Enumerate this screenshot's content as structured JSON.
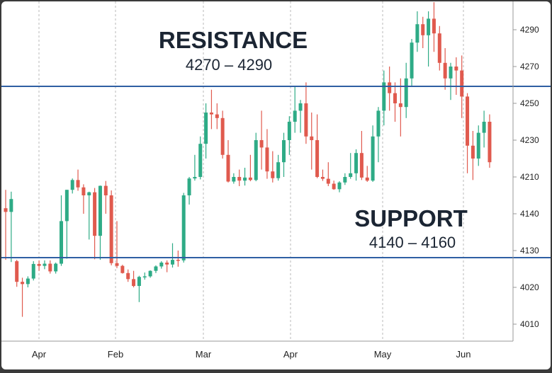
{
  "chart_data": {
    "type": "candlestick",
    "x_tick_labels": [
      "Apr",
      "Feb",
      "Mar",
      "Apr",
      "May",
      "Jun"
    ],
    "y_tick_labels": [
      "4290",
      "4270",
      "4250",
      "4230",
      "4210",
      "4140",
      "4130",
      "4130",
      "4020",
      "4010"
    ],
    "grid": {
      "vertical": true,
      "horizontal": false
    },
    "annotations": [
      {
        "name": "resistance",
        "title": "RESISTANCE",
        "range": "4270 – 4290"
      },
      {
        "name": "support",
        "title": "SUPPORT",
        "range": "4140 – 4160"
      }
    ],
    "reference_lines": {
      "upper": 4260,
      "lower": 4128,
      "color": "#2f5fa3"
    },
    "colors": {
      "up": "#2eab86",
      "down": "#e05a4e",
      "grid": "#b8b8b8",
      "axis": "#999999"
    },
    "candles": [
      [
        4143,
        4168,
        4120,
        4141
      ],
      [
        4141,
        4162,
        4112,
        4148
      ],
      [
        4115,
        4120,
        4022,
        4040
      ],
      [
        4040,
        4055,
        4012,
        4032
      ],
      [
        4032,
        4060,
        4020,
        4052
      ],
      [
        4052,
        4115,
        4045,
        4105
      ],
      [
        4105,
        4118,
        4080,
        4098
      ],
      [
        4098,
        4118,
        4086,
        4106
      ],
      [
        4106,
        4118,
        4070,
        4078
      ],
      [
        4078,
        4110,
        4070,
        4106
      ],
      [
        4106,
        4150,
        4098,
        4138
      ],
      [
        4138,
        4168,
        4124,
        4168
      ],
      [
        4168,
        4205,
        4156,
        4200
      ],
      [
        4200,
        4214,
        4165,
        4176
      ],
      [
        4176,
        4186,
        4140,
        4150
      ],
      [
        4150,
        4162,
        4133,
        4160
      ],
      [
        4160,
        4174,
        4122,
        4134
      ],
      [
        4134,
        4182,
        4120,
        4181
      ],
      [
        4181,
        4197,
        4140,
        4150
      ],
      [
        4150,
        4166,
        4100,
        4108
      ],
      [
        4108,
        4138,
        4090,
        4098
      ],
      [
        4098,
        4102,
        4070,
        4072
      ],
      [
        4072,
        4085,
        4040,
        4050
      ],
      [
        4050,
        4080,
        4020,
        4025
      ],
      [
        4025,
        4062,
        4016,
        4058
      ],
      [
        4058,
        4074,
        4048,
        4060
      ],
      [
        4060,
        4082,
        4055,
        4080
      ],
      [
        4080,
        4100,
        4072,
        4096
      ],
      [
        4096,
        4115,
        4088,
        4110
      ],
      [
        4110,
        4118,
        4075,
        4103
      ],
      [
        4103,
        4132,
        4092,
        4120
      ],
      [
        4120,
        4130,
        4095,
        4118
      ],
      [
        4118,
        4158,
        4110,
        4150
      ],
      [
        4150,
        4210,
        4145,
        4205
      ],
      [
        4205,
        4222,
        4198,
        4210
      ],
      [
        4210,
        4232,
        4202,
        4228
      ],
      [
        4228,
        4250,
        4220,
        4245
      ],
      [
        4245,
        4258,
        4236,
        4244
      ],
      [
        4244,
        4250,
        4236,
        4242
      ],
      [
        4242,
        4246,
        4220,
        4222
      ],
      [
        4222,
        4230,
        4192,
        4195
      ],
      [
        4195,
        4212,
        4188,
        4210
      ],
      [
        4210,
        4214,
        4180,
        4198
      ],
      [
        4198,
        4215,
        4182,
        4208
      ],
      [
        4208,
        4222,
        4196,
        4200
      ],
      [
        4200,
        4234,
        4196,
        4230
      ],
      [
        4230,
        4246,
        4214,
        4226
      ],
      [
        4226,
        4236,
        4204,
        4213
      ],
      [
        4213,
        4224,
        4192,
        4206
      ],
      [
        4206,
        4222,
        4198,
        4218
      ],
      [
        4218,
        4234,
        4210,
        4230
      ],
      [
        4230,
        4243,
        4222,
        4240
      ],
      [
        4240,
        4260,
        4234,
        4246
      ],
      [
        4246,
        4252,
        4234,
        4250
      ],
      [
        4250,
        4262,
        4228,
        4232
      ],
      [
        4232,
        4245,
        4214,
        4230
      ],
      [
        4230,
        4244,
        4206,
        4210
      ],
      [
        4210,
        4214,
        4197,
        4204
      ],
      [
        4204,
        4218,
        4180,
        4188
      ],
      [
        4188,
        4198,
        4168,
        4170
      ],
      [
        4170,
        4196,
        4160,
        4192
      ],
      [
        4192,
        4212,
        4184,
        4210
      ],
      [
        4210,
        4223,
        4204,
        4212
      ],
      [
        4212,
        4225,
        4198,
        4223
      ],
      [
        4223,
        4235,
        4200,
        4208
      ],
      [
        4208,
        4216,
        4194,
        4198
      ],
      [
        4198,
        4238,
        4194,
        4232
      ],
      [
        4232,
        4248,
        4218,
        4246
      ],
      [
        4246,
        4268,
        4238,
        4262
      ],
      [
        4262,
        4270,
        4246,
        4256
      ],
      [
        4256,
        4262,
        4240,
        4250
      ],
      [
        4250,
        4264,
        4232,
        4248
      ],
      [
        4248,
        4272,
        4242,
        4264
      ],
      [
        4264,
        4285,
        4260,
        4283
      ],
      [
        4283,
        4300,
        4278,
        4293
      ],
      [
        4293,
        4297,
        4280,
        4287
      ],
      [
        4287,
        4300,
        4270,
        4296
      ],
      [
        4296,
        4305,
        4278,
        4288
      ],
      [
        4288,
        4292,
        4268,
        4272
      ],
      [
        4272,
        4280,
        4258,
        4264
      ],
      [
        4264,
        4272,
        4252,
        4270
      ],
      [
        4270,
        4275,
        4255,
        4268
      ],
      [
        4268,
        4276,
        4242,
        4254
      ],
      [
        4254,
        4256,
        4212,
        4227
      ],
      [
        4227,
        4235,
        4200,
        4220
      ],
      [
        4220,
        4238,
        4216,
        4234
      ],
      [
        4234,
        4246,
        4226,
        4240
      ],
      [
        4240,
        4244,
        4215,
        4218
      ]
    ]
  }
}
